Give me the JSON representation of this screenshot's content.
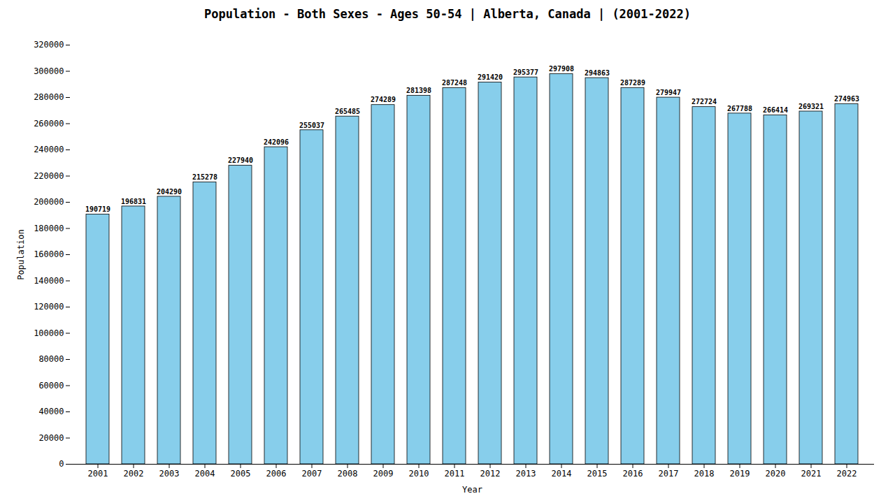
{
  "chart_data": {
    "type": "bar",
    "title": "Population - Both Sexes - Ages 50-54 | Alberta, Canada |  (2001-2022)",
    "xlabel": "Year",
    "ylabel": "Population",
    "categories": [
      "2001",
      "2002",
      "2003",
      "2004",
      "2005",
      "2006",
      "2007",
      "2008",
      "2009",
      "2010",
      "2011",
      "2012",
      "2013",
      "2014",
      "2015",
      "2016",
      "2017",
      "2018",
      "2019",
      "2020",
      "2021",
      "2022"
    ],
    "values": [
      190719,
      196831,
      204290,
      215278,
      227940,
      242096,
      255037,
      265485,
      274289,
      281398,
      287248,
      291420,
      295377,
      297908,
      294863,
      287289,
      279947,
      272724,
      267788,
      266414,
      269321,
      274963
    ],
    "color": "#87CEEB",
    "ylim": [
      0,
      320000
    ],
    "yticks": [
      0,
      20000,
      40000,
      60000,
      80000,
      100000,
      120000,
      140000,
      160000,
      180000,
      200000,
      220000,
      240000,
      260000,
      280000,
      300000,
      320000
    ],
    "grid": false,
    "data_labels": true
  }
}
